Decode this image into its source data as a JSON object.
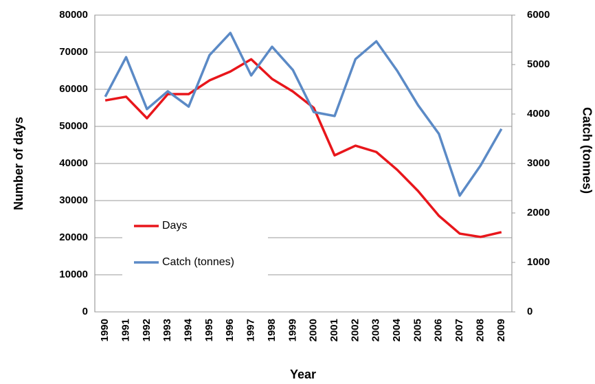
{
  "chart_data": {
    "type": "line",
    "x_label": "Year",
    "y_label": "Number of days",
    "y2_label": "Catch (tonnes)",
    "categories": [
      "1990",
      "1991",
      "1992",
      "1993",
      "1994",
      "1995",
      "1996",
      "1997",
      "1998",
      "1999",
      "2000",
      "2001",
      "2002",
      "2003",
      "2004",
      "2005",
      "2006",
      "2007",
      "2008",
      "2009"
    ],
    "series": [
      {
        "name": "Days",
        "color": "#e8161b",
        "values": [
          57000,
          58000,
          52200,
          58700,
          58700,
          62400,
          64800,
          68100,
          62800,
          59400,
          55000,
          42200,
          44800,
          43100,
          38300,
          32600,
          25900,
          21100,
          20200,
          21500
        ]
      },
      {
        "name": "Catch (tonnes)",
        "color": "#5b8ac6",
        "axis": "y2",
        "values": [
          4350,
          5150,
          4100,
          4460,
          4150,
          5190,
          5640,
          4780,
          5360,
          4890,
          4040,
          3960,
          5110,
          5470,
          4875,
          4180,
          3600,
          2350,
          2960,
          3700
        ]
      }
    ],
    "ylim": [
      0,
      80000
    ],
    "yticks": [
      0,
      10000,
      20000,
      30000,
      40000,
      50000,
      60000,
      70000,
      80000
    ],
    "y2lim": [
      0,
      6000
    ],
    "y2ticks": [
      0,
      1000,
      2000,
      3000,
      4000,
      5000,
      6000
    ],
    "grid": true,
    "legend": "left"
  }
}
